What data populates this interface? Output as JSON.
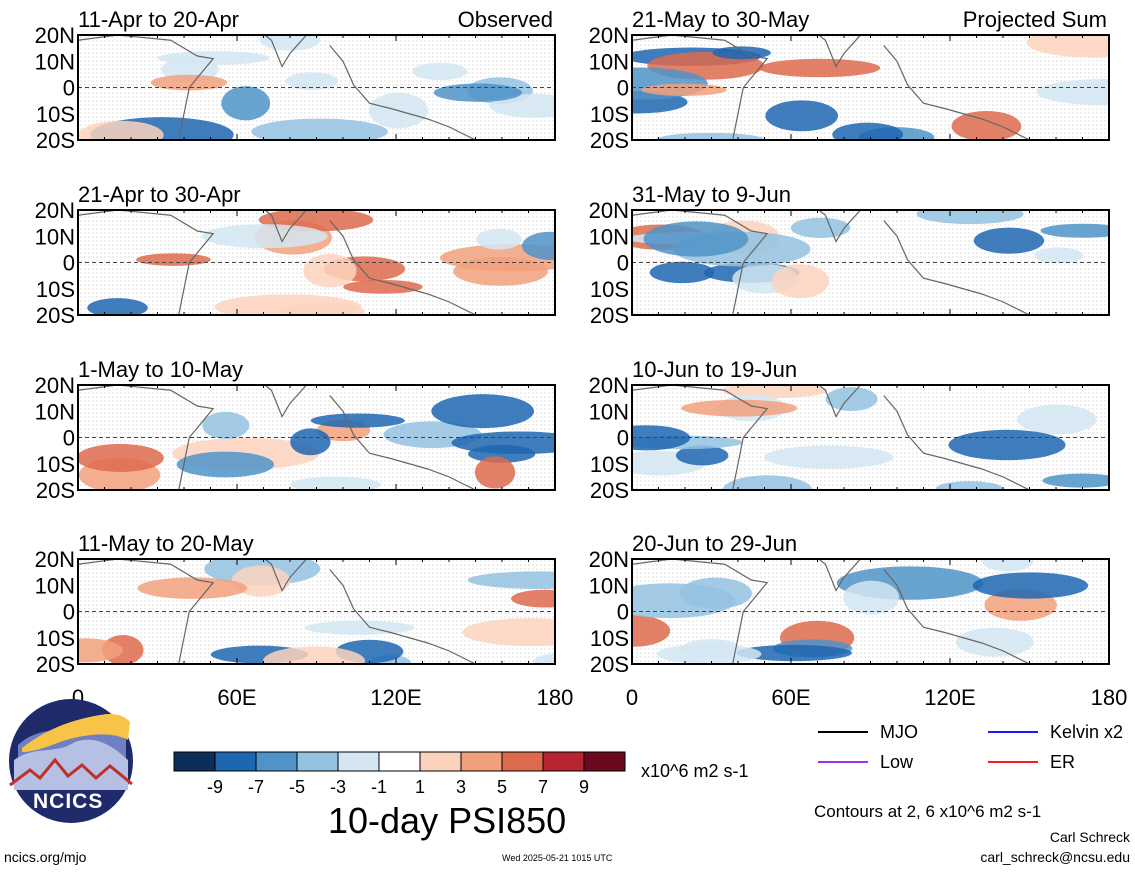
{
  "chart_data": {
    "type": "heatmap",
    "title": "10-day PSI850",
    "x_ticks": [
      "0",
      "60E",
      "120E",
      "180"
    ],
    "y_ticks": [
      "20N",
      "10N",
      "0",
      "10S",
      "20S"
    ],
    "xlim": [
      0,
      180
    ],
    "ylim": [
      -20,
      20
    ],
    "units": "x10^6 m2 s-1",
    "colorbar": {
      "ticks": [
        "-9",
        "-7",
        "-5",
        "-3",
        "-1",
        "1",
        "3",
        "5",
        "7",
        "9"
      ],
      "colors": [
        "#0b2f5a",
        "#1f66b0",
        "#4f93c8",
        "#93c2e0",
        "#d3e6f2",
        "#ffffff",
        "#fbd3bd",
        "#f2a07c",
        "#de6a4e",
        "#b72630",
        "#6b0a1e"
      ]
    },
    "panels": [
      {
        "label": "11-Apr to 20-Apr",
        "tag": "Observed"
      },
      {
        "label": "21-May to 30-May",
        "tag": "Projected Sum"
      },
      {
        "label": "21-Apr to 30-Apr",
        "tag": ""
      },
      {
        "label": "31-May to 9-Jun",
        "tag": ""
      },
      {
        "label": "1-May to 10-May",
        "tag": ""
      },
      {
        "label": "10-Jun to 19-Jun",
        "tag": ""
      },
      {
        "label": "11-May to 20-May",
        "tag": ""
      },
      {
        "label": "20-Jun to 29-Jun",
        "tag": ""
      }
    ],
    "legend": [
      {
        "label": "MJO",
        "color": "#000000"
      },
      {
        "label": "Kelvin x2",
        "color": "#1a1aff"
      },
      {
        "label": "Low",
        "color": "#a030f0"
      },
      {
        "label": "ER",
        "color": "#ff1a1a"
      }
    ],
    "contour_note": "Contours at 2, 6 x10^6 m2 s-1"
  },
  "footer": {
    "logo_text": "NCICS",
    "url": "ncics.org/mjo",
    "timestamp": "Wed 2025-05-21 1015 UTC",
    "author": "Carl Schreck",
    "email": "carl_schreck@ncsu.edu"
  }
}
